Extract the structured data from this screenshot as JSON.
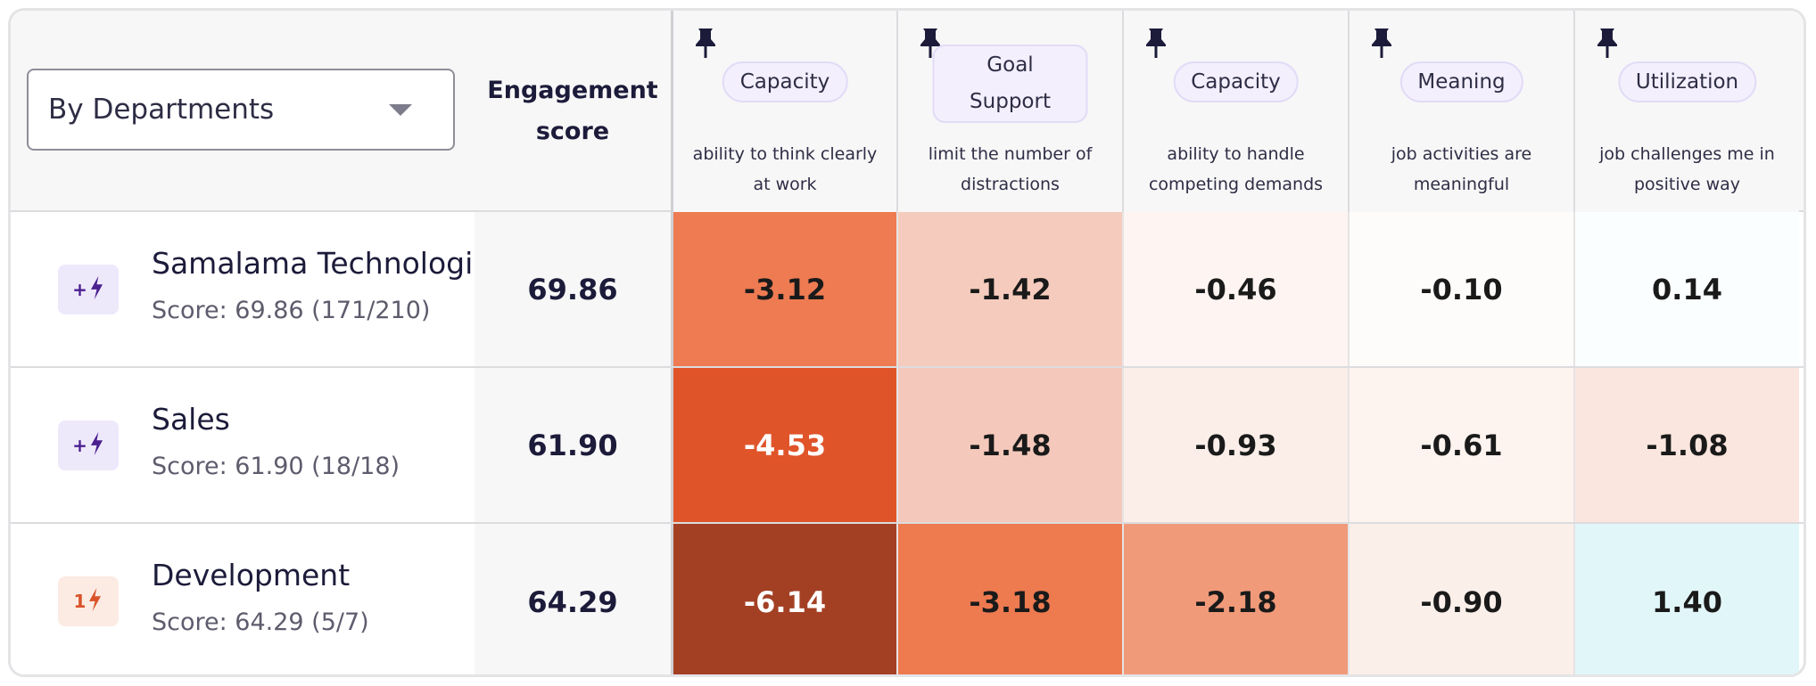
{
  "dropdown": {
    "label": "By Departments"
  },
  "engagement_header": {
    "line1": "Engagement",
    "line2": "score"
  },
  "columns": [
    {
      "tag_lines": [
        "Capacity"
      ],
      "description_lines": [
        "ability to think clearly",
        "at work"
      ]
    },
    {
      "tag_lines": [
        "Goal",
        "Support"
      ],
      "description_lines": [
        "limit the number of",
        "distractions"
      ]
    },
    {
      "tag_lines": [
        "Capacity"
      ],
      "description_lines": [
        "ability to handle",
        "competing demands"
      ]
    },
    {
      "tag_lines": [
        "Meaning"
      ],
      "description_lines": [
        "job activities are",
        "meaningful"
      ]
    },
    {
      "tag_lines": [
        "Utilization"
      ],
      "description_lines": [
        "job challenges me in",
        "positive way"
      ]
    }
  ],
  "rows": [
    {
      "name": "Samalama Technologies",
      "score_text": "Score: 69.86 (171/210)",
      "badge": {
        "prefix": "+",
        "style": "purple",
        "icon": "lightning-icon"
      },
      "engagement": "69.86",
      "values": [
        {
          "text": "-3.12",
          "bg": "#ee7b52",
          "fg": "#1a1a1a"
        },
        {
          "text": "-1.42",
          "bg": "#f5cbbd",
          "fg": "#1a1a1a"
        },
        {
          "text": "-0.46",
          "bg": "#fef4f1",
          "fg": "#1a1a1a"
        },
        {
          "text": "-0.10",
          "bg": "#fefcfb",
          "fg": "#1a1a1a"
        },
        {
          "text": "0.14",
          "bg": "#fbfefe",
          "fg": "#1a1a1a"
        }
      ]
    },
    {
      "name": "Sales",
      "score_text": "Score: 61.90 (18/18)",
      "badge": {
        "prefix": "+",
        "style": "purple",
        "icon": "lightning-icon"
      },
      "engagement": "61.90",
      "values": [
        {
          "text": "-4.53",
          "bg": "#e0542a",
          "fg": "#ffffff"
        },
        {
          "text": "-1.48",
          "bg": "#f4c9bb",
          "fg": "#1a1a1a"
        },
        {
          "text": "-0.93",
          "bg": "#fbeee9",
          "fg": "#1a1a1a"
        },
        {
          "text": "-0.61",
          "bg": "#fdf3ef",
          "fg": "#1a1a1a"
        },
        {
          "text": "-1.08",
          "bg": "#fae6de",
          "fg": "#1a1a1a"
        }
      ]
    },
    {
      "name": "Development",
      "score_text": "Score: 64.29 (5/7)",
      "badge": {
        "prefix": "1",
        "style": "orange",
        "icon": "lightning-icon"
      },
      "engagement": "64.29",
      "values": [
        {
          "text": "-6.14",
          "bg": "#a34024",
          "fg": "#ffffff"
        },
        {
          "text": "-3.18",
          "bg": "#ee7a50",
          "fg": "#1a1a1a"
        },
        {
          "text": "-2.18",
          "bg": "#f09a79",
          "fg": "#1a1a1a"
        },
        {
          "text": "-0.90",
          "bg": "#fbefea",
          "fg": "#1a1a1a"
        },
        {
          "text": "1.40",
          "bg": "#e1f6f8",
          "fg": "#1a1a1a"
        }
      ]
    }
  ]
}
